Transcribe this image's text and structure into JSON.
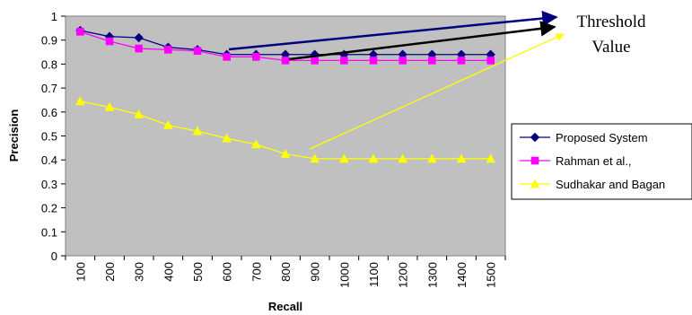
{
  "chart_data": {
    "type": "line",
    "xlabel": "Recall",
    "ylabel": "Precision",
    "categories": [
      "100",
      "200",
      "300",
      "400",
      "500",
      "600",
      "700",
      "800",
      "900",
      "1000",
      "1100",
      "1200",
      "1300",
      "1400",
      "1500"
    ],
    "ylim": [
      0,
      1
    ],
    "yticks": [
      "0",
      "0.1",
      "0.2",
      "0.3",
      "0.4",
      "0.5",
      "0.6",
      "0.7",
      "0.8",
      "0.9",
      "1"
    ],
    "plot_background": "#c0c0c0",
    "grid": false,
    "legend_position": "right",
    "series": [
      {
        "name": "Proposed System",
        "color": "#000080",
        "marker": "diamond",
        "values": [
          0.94,
          0.915,
          0.91,
          0.87,
          0.86,
          0.84,
          0.84,
          0.84,
          0.84,
          0.84,
          0.84,
          0.84,
          0.84,
          0.84,
          0.84
        ]
      },
      {
        "name": "Rahman et al.,",
        "color": "#ff00ff",
        "marker": "square",
        "values": [
          0.935,
          0.895,
          0.865,
          0.86,
          0.855,
          0.83,
          0.83,
          0.815,
          0.815,
          0.815,
          0.815,
          0.815,
          0.815,
          0.815,
          0.815
        ]
      },
      {
        "name": "Sudhakar and Bagan",
        "color": "#ffff00",
        "marker": "triangle",
        "values": [
          0.645,
          0.62,
          0.59,
          0.545,
          0.52,
          0.49,
          0.465,
          0.425,
          0.405,
          0.405,
          0.405,
          0.405,
          0.405,
          0.405,
          0.405
        ]
      }
    ],
    "annotation": {
      "text_line1": "Threshold",
      "text_line2": "Value"
    }
  }
}
